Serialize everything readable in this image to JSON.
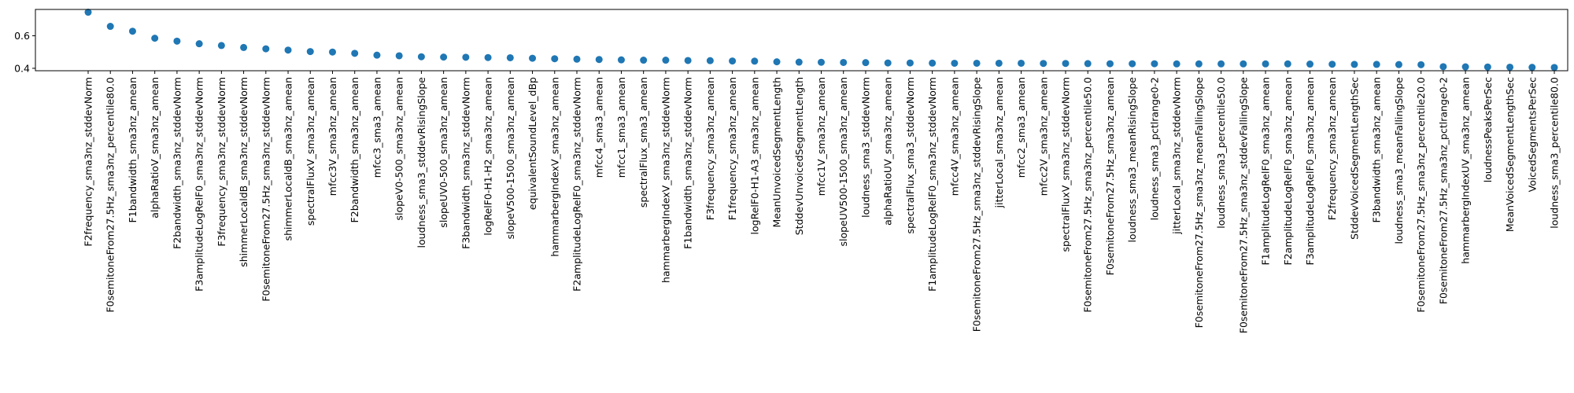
{
  "chart_data": {
    "type": "scatter",
    "title": "",
    "xlabel": "",
    "ylabel": "",
    "ylim": [
      0.385,
      0.762
    ],
    "yticks": [
      0.4,
      0.6
    ],
    "grid": false,
    "marker_color": "#1f77b4",
    "categories": [
      "F2frequency_sma3nz_stddevNorm",
      "F0semitoneFrom27.5Hz_sma3nz_percentile80.0",
      "F1bandwidth_sma3nz_amean",
      "alphaRatioV_sma3nz_amean",
      "F2bandwidth_sma3nz_stddevNorm",
      "F3amplitudeLogRelF0_sma3nz_stddevNorm",
      "F3frequency_sma3nz_stddevNorm",
      "shimmerLocaldB_sma3nz_stddevNorm",
      "F0semitoneFrom27.5Hz_sma3nz_stddevNorm",
      "shimmerLocaldB_sma3nz_amean",
      "spectralFluxV_sma3nz_amean",
      "mfcc3V_sma3nz_amean",
      "F2bandwidth_sma3nz_amean",
      "mfcc3_sma3_amean",
      "slopeV0-500_sma3nz_amean",
      "loudness_sma3_stddevRisingSlope",
      "slopeUV0-500_sma3nz_amean",
      "F3bandwidth_sma3nz_stddevNorm",
      "logRelF0-H1-H2_sma3nz_amean",
      "slopeV500-1500_sma3nz_amean",
      "equivalentSoundLevel_dBp",
      "hammarbergIndexV_sma3nz_amean",
      "F2amplitudeLogRelF0_sma3nz_stddevNorm",
      "mfcc4_sma3_amean",
      "mfcc1_sma3_amean",
      "spectralFlux_sma3_amean",
      "hammarbergIndexV_sma3nz_stddevNorm",
      "F1bandwidth_sma3nz_stddevNorm",
      "F3frequency_sma3nz_amean",
      "F1frequency_sma3nz_amean",
      "logRelF0-H1-A3_sma3nz_amean",
      "MeanUnvoicedSegmentLength",
      "StddevUnvoicedSegmentLength",
      "mfcc1V_sma3nz_amean",
      "slopeUV500-1500_sma3nz_amean",
      "loudness_sma3_stddevNorm",
      "alphaRatioUV_sma3nz_amean",
      "spectralFlux_sma3_stddevNorm",
      "F1amplitudeLogRelF0_sma3nz_stddevNorm",
      "mfcc4V_sma3nz_amean",
      "F0semitoneFrom27.5Hz_sma3nz_stddevRisingSlope",
      "jitterLocal_sma3nz_amean",
      "mfcc2_sma3_amean",
      "mfcc2V_sma3nz_amean",
      "spectralFluxV_sma3nz_stddevNorm",
      "F0semitoneFrom27.5Hz_sma3nz_percentile50.0",
      "F0semitoneFrom27.5Hz_sma3nz_amean",
      "loudness_sma3_meanRisingSlope",
      "loudness_sma3_pctlrange0-2",
      "jitterLocal_sma3nz_stddevNorm",
      "F0semitoneFrom27.5Hz_sma3nz_meanFallingSlope",
      "loudness_sma3_percentile50.0",
      "F0semitoneFrom27.5Hz_sma3nz_stddevFallingSlope",
      "F1amplitudeLogRelF0_sma3nz_amean",
      "F2amplitudeLogRelF0_sma3nz_amean",
      "F3amplitudeLogRelF0_sma3nz_amean",
      "F2frequency_sma3nz_amean",
      "StddevVoicedSegmentLengthSec",
      "F3bandwidth_sma3nz_amean",
      "loudness_sma3_meanFallingSlope",
      "F0semitoneFrom27.5Hz_sma3nz_percentile20.0",
      "F0semitoneFrom27.5Hz_sma3nz_pctlrange0-2",
      "hammarbergIndexUV_sma3nz_amean",
      "loudnessPeaksPerSec",
      "MeanVoicedSegmentLengthSec",
      "VoicedSegmentsPerSec",
      "loudness_sma3_percentile80.0"
    ],
    "values": [
      0.745,
      0.658,
      0.628,
      0.585,
      0.567,
      0.551,
      0.54,
      0.528,
      0.52,
      0.512,
      0.503,
      0.5,
      0.492,
      0.481,
      0.477,
      0.471,
      0.469,
      0.468,
      0.466,
      0.465,
      0.462,
      0.459,
      0.456,
      0.454,
      0.452,
      0.45,
      0.45,
      0.448,
      0.447,
      0.445,
      0.444,
      0.44,
      0.438,
      0.437,
      0.436,
      0.435,
      0.433,
      0.433,
      0.432,
      0.431,
      0.431,
      0.431,
      0.431,
      0.43,
      0.43,
      0.429,
      0.428,
      0.428,
      0.428,
      0.427,
      0.427,
      0.427,
      0.427,
      0.427,
      0.427,
      0.426,
      0.425,
      0.424,
      0.424,
      0.423,
      0.422,
      0.41,
      0.409,
      0.408,
      0.407,
      0.406,
      0.405
    ]
  }
}
